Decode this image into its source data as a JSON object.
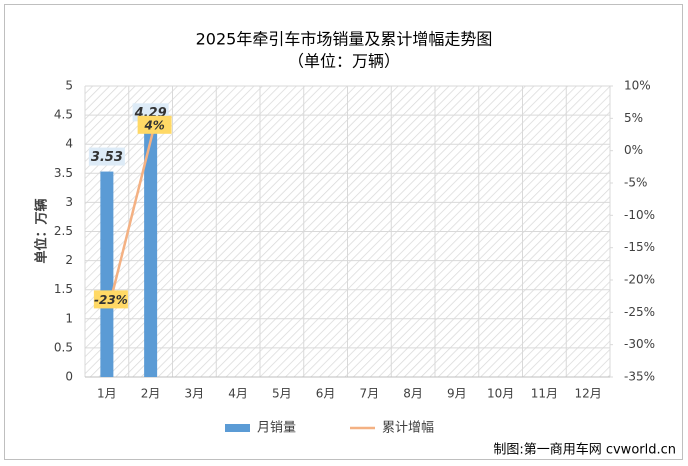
{
  "chart_data": {
    "type": "bar_line",
    "title": "2025年牵引车市场销量及累计增幅走势图",
    "subtitle": "（单位：万辆）",
    "y_label": "单位：万辆",
    "source": "制图:第一商用车网 cvworld.cn",
    "categories": [
      "1月",
      "2月",
      "3月",
      "4月",
      "5月",
      "6月",
      "7月",
      "8月",
      "9月",
      "10月",
      "11月",
      "12月"
    ],
    "series": [
      {
        "name": "月销量",
        "color": "#5b9bd5",
        "type": "bar",
        "values": [
          3.53,
          4.29,
          null,
          null,
          null,
          null,
          null,
          null,
          null,
          null,
          null,
          null
        ]
      },
      {
        "name": "累计增幅",
        "color": "#f4b183",
        "type": "line",
        "axis": "y2",
        "values": [
          -23,
          4,
          null,
          null,
          null,
          null,
          null,
          null,
          null,
          null,
          null,
          null
        ],
        "value_labels": [
          "-23%",
          "4%",
          null,
          null,
          null,
          null,
          null,
          null,
          null,
          null,
          null,
          null
        ]
      }
    ],
    "ylim": [
      0,
      5
    ],
    "yticks": [
      0,
      0.5,
      1,
      1.5,
      2,
      2.5,
      3,
      3.5,
      4,
      4.5,
      5
    ],
    "y2lim": [
      -35,
      10
    ],
    "y2ticks": [
      {
        "value": -35,
        "label": "-35%"
      },
      {
        "value": -30,
        "label": "-30%"
      },
      {
        "value": -25,
        "label": "-25%"
      },
      {
        "value": -20,
        "label": "-20%"
      },
      {
        "value": -15,
        "label": "-15%"
      },
      {
        "value": -10,
        "label": "-10%"
      },
      {
        "value": -5,
        "label": "-5%"
      },
      {
        "value": 0,
        "label": "0%"
      },
      {
        "value": 5,
        "label": "5%"
      },
      {
        "value": 10,
        "label": "10%"
      }
    ],
    "grid": true
  }
}
